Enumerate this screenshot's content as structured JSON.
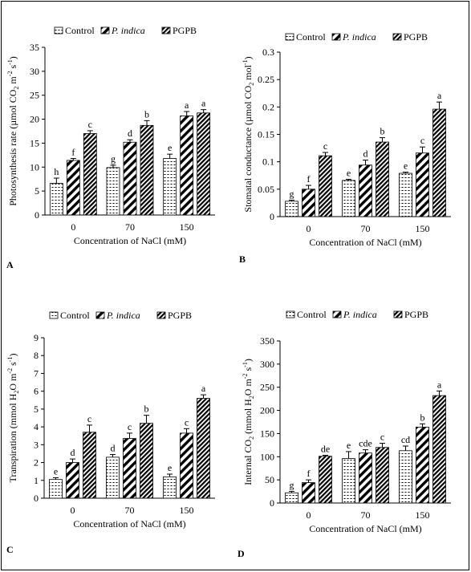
{
  "legend": {
    "control": "Control",
    "pindica": "P. indica",
    "pgpb": "PGPB"
  },
  "chart_data": [
    {
      "panel": "A",
      "type": "bar",
      "ylabel_parts": [
        "Photosynthesis rate (µmol CO",
        "2",
        " m",
        "-2",
        " s",
        "-1",
        ")"
      ],
      "xlabel": "Concentration of NaCl (mM)",
      "categories": [
        "0",
        "70",
        "150"
      ],
      "ylim": [
        0,
        35
      ],
      "yticks": [
        0,
        5,
        10,
        15,
        20,
        25,
        30,
        35
      ],
      "tick_labels": [
        "0",
        "5",
        "10",
        "15",
        "20",
        "25",
        "30",
        "35"
      ],
      "series": [
        {
          "name": "Control",
          "values": [
            6.6,
            9.9,
            11.8
          ],
          "errors": [
            1.1,
            0.5,
            0.9
          ],
          "letters": [
            "h",
            "g",
            "e"
          ]
        },
        {
          "name": "P. indica",
          "values": [
            11.4,
            15.2,
            20.7
          ],
          "errors": [
            0.4,
            0.5,
            0.9
          ],
          "letters": [
            "f",
            "d",
            "a"
          ]
        },
        {
          "name": "PGPB",
          "values": [
            17.0,
            18.7,
            21.3
          ],
          "errors": [
            0.6,
            1.0,
            0.7
          ],
          "letters": [
            "c",
            "b",
            "a"
          ]
        }
      ]
    },
    {
      "panel": "B",
      "type": "bar",
      "ylabel_parts": [
        "Stomatal conductance (µmol CO",
        "2",
        " mol",
        "-1",
        ")"
      ],
      "xlabel": "Concentration of NaCl (mM)",
      "categories": [
        "0",
        "70",
        "150"
      ],
      "ylim": [
        0,
        0.3
      ],
      "yticks": [
        0,
        0.05,
        0.1,
        0.15,
        0.2,
        0.25,
        0.3
      ],
      "tick_labels": [
        "0",
        "0.05",
        "0.1",
        "0.15",
        "0.2",
        "0.25",
        "0.3"
      ],
      "series": [
        {
          "name": "Control",
          "values": [
            0.028,
            0.066,
            0.079
          ],
          "errors": [
            0.002,
            0.002,
            0.002
          ],
          "letters": [
            "g",
            "e",
            "e"
          ]
        },
        {
          "name": "P. indica",
          "values": [
            0.05,
            0.094,
            0.116
          ],
          "errors": [
            0.007,
            0.009,
            0.011
          ],
          "letters": [
            "f",
            "d",
            "c"
          ]
        },
        {
          "name": "PGPB",
          "values": [
            0.111,
            0.136,
            0.196
          ],
          "errors": [
            0.006,
            0.008,
            0.013
          ],
          "letters": [
            "c",
            "b",
            "a"
          ]
        }
      ]
    },
    {
      "panel": "C",
      "type": "bar",
      "ylabel_parts": [
        "Transpiration (mmol H",
        "2",
        "O m",
        "-2",
        " s",
        "-1",
        ")"
      ],
      "xlabel": "Concentration of NaCl (mM)",
      "categories": [
        "0",
        "70",
        "150"
      ],
      "ylim": [
        0,
        9
      ],
      "yticks": [
        0,
        1,
        2,
        3,
        4,
        5,
        6,
        7,
        8,
        9
      ],
      "tick_labels": [
        "0",
        "1",
        "2",
        "3",
        "4",
        "5",
        "6",
        "7",
        "8",
        "9"
      ],
      "series": [
        {
          "name": "Control",
          "values": [
            1.05,
            2.3,
            1.2
          ],
          "errors": [
            0.1,
            0.15,
            0.15
          ],
          "letters": [
            "e",
            "d",
            "e"
          ]
        },
        {
          "name": "P. indica",
          "values": [
            2.0,
            3.35,
            3.65
          ],
          "errors": [
            0.2,
            0.3,
            0.25
          ],
          "letters": [
            "d",
            "c",
            "c"
          ]
        },
        {
          "name": "PGPB",
          "values": [
            3.7,
            4.2,
            5.6
          ],
          "errors": [
            0.4,
            0.45,
            0.2
          ],
          "letters": [
            "c",
            "b",
            "a"
          ]
        }
      ]
    },
    {
      "panel": "D",
      "type": "bar",
      "ylabel_parts": [
        "Internal CO",
        "2",
        " (mmol H",
        "2",
        "O m",
        "-2",
        " s",
        "-1",
        ")"
      ],
      "xlabel": "Concentration of NaCl (mM)",
      "categories": [
        "0",
        "70",
        "150"
      ],
      "ylim": [
        0,
        350
      ],
      "yticks": [
        0,
        50,
        100,
        150,
        200,
        250,
        300,
        350
      ],
      "tick_labels": [
        "0",
        "50",
        "100",
        "150",
        "200",
        "250",
        "300",
        "350"
      ],
      "series": [
        {
          "name": "Control",
          "values": [
            22,
            96,
            113
          ],
          "errors": [
            3,
            15,
            10
          ],
          "letters": [
            "g",
            "e",
            "cd"
          ]
        },
        {
          "name": "P. indica",
          "values": [
            44,
            108,
            164
          ],
          "errors": [
            6,
            7,
            7
          ],
          "letters": [
            "f",
            "cde",
            "b"
          ]
        },
        {
          "name": "PGPB",
          "values": [
            101,
            120,
            232
          ],
          "errors": [
            2,
            9,
            10
          ],
          "letters": [
            "de",
            "c",
            "a"
          ]
        }
      ]
    }
  ]
}
